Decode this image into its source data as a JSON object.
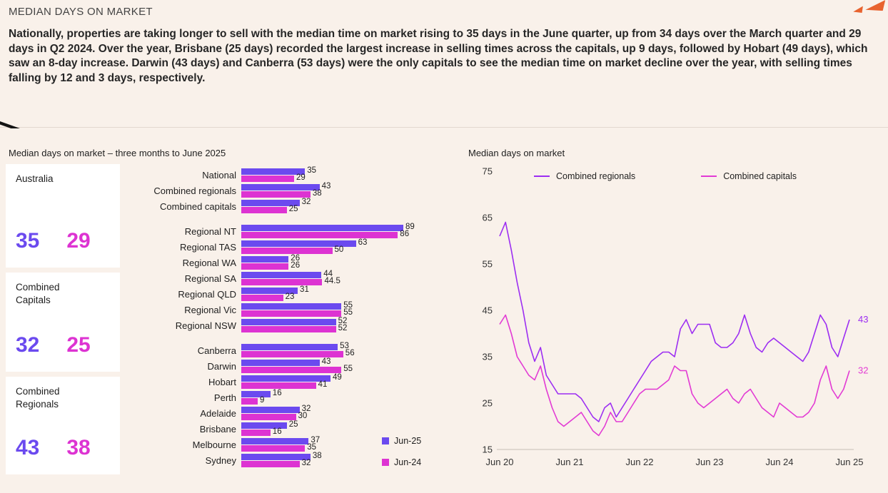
{
  "header": {
    "title": "MEDIAN DAYS ON MARKET",
    "intro": "Nationally, properties are taking longer to sell with the median time on market rising to 35 days in the June quarter, up from 34 days over the March quarter and 29 days in Q2 2024. Over the year, Brisbane (25 days) recorded the largest increase in selling times across the capitals, up 9 days, followed by Hobart (49 days), which saw an 8-day increase. Darwin (43 days) and Canberra (53 days) were the only capitals to see the median time on market decline over the year, with selling times falling by 12 and 3 days, respectively."
  },
  "colors": {
    "jun25_purple": "#6b4aef",
    "jun24_magenta": "#dd33d2",
    "regionals_line": "#9c2df2",
    "capitals_line": "#e23ad4",
    "decor_orange": "#e8632f",
    "axis_gray": "#c8bfb7",
    "background": "#f9f1ea"
  },
  "stat_cards": [
    {
      "label": "Australia",
      "jun25": "35",
      "jun24": "29"
    },
    {
      "label": "Combined\nCapitals",
      "jun25": "32",
      "jun24": "25"
    },
    {
      "label": "Combined\nRegionals",
      "jun25": "43",
      "jun24": "38"
    }
  ],
  "chart_data": [
    {
      "type": "bar",
      "orientation": "horizontal",
      "title": "Median days on market – three months to June 2025",
      "series_names": [
        "Jun-25",
        "Jun-24"
      ],
      "xlim": [
        0,
        95
      ],
      "groups": [
        {
          "rows": [
            {
              "label": "National",
              "values": [
                35,
                29
              ]
            },
            {
              "label": "Combined regionals",
              "values": [
                43,
                38
              ]
            },
            {
              "label": "Combined capitals",
              "values": [
                32,
                25
              ]
            }
          ]
        },
        {
          "rows": [
            {
              "label": "Regional NT",
              "values": [
                89,
                86
              ]
            },
            {
              "label": "Regional TAS",
              "values": [
                63,
                50
              ]
            },
            {
              "label": "Regional WA",
              "values": [
                26,
                26
              ]
            },
            {
              "label": "Regional SA",
              "values": [
                44,
                44.5
              ]
            },
            {
              "label": "Regional QLD",
              "values": [
                31,
                23
              ]
            },
            {
              "label": "Regional Vic",
              "values": [
                55,
                55
              ]
            },
            {
              "label": "Regional NSW",
              "values": [
                52,
                52
              ]
            }
          ]
        },
        {
          "rows": [
            {
              "label": "Canberra",
              "values": [
                53,
                56
              ]
            },
            {
              "label": "Darwin",
              "values": [
                43,
                55
              ]
            },
            {
              "label": "Hobart",
              "values": [
                49,
                41
              ]
            },
            {
              "label": "Perth",
              "values": [
                16,
                9
              ]
            },
            {
              "label": "Adelaide",
              "values": [
                32,
                30
              ]
            },
            {
              "label": "Brisbane",
              "values": [
                25,
                16
              ]
            },
            {
              "label": "Melbourne",
              "values": [
                37,
                35
              ]
            },
            {
              "label": "Sydney",
              "values": [
                38,
                32
              ]
            }
          ]
        }
      ]
    },
    {
      "type": "line",
      "title": "Median days on market",
      "ylim": [
        15,
        75
      ],
      "yticks": [
        75,
        65,
        55,
        45,
        35,
        25,
        15
      ],
      "xticks": [
        "Jun 20",
        "Jun 21",
        "Jun 22",
        "Jun 23",
        "Jun 24",
        "Jun 25"
      ],
      "grid": false,
      "legend_position": "top",
      "series": [
        {
          "name": "Combined regionals",
          "color_key": "regionals_line",
          "end_label": "43",
          "values": [
            61,
            64,
            58,
            51,
            45,
            38,
            34,
            37,
            31,
            29,
            27,
            27,
            27,
            27,
            26,
            24,
            22,
            21,
            24,
            25,
            22,
            24,
            26,
            28,
            30,
            32,
            34,
            35,
            36,
            36,
            35,
            41,
            43,
            40,
            42,
            42,
            42,
            38,
            37,
            37,
            38,
            40,
            44,
            40,
            37,
            36,
            38,
            39,
            38,
            37,
            36,
            35,
            34,
            36,
            40,
            44,
            42,
            37,
            35,
            39,
            43
          ]
        },
        {
          "name": "Combined capitals",
          "color_key": "capitals_line",
          "end_label": "32",
          "values": [
            42,
            44,
            40,
            35,
            33,
            31,
            30,
            33,
            28,
            24,
            21,
            20,
            21,
            22,
            23,
            21,
            19,
            18,
            20,
            23,
            21,
            21,
            23,
            25,
            27,
            28,
            28,
            28,
            29,
            30,
            33,
            32,
            32,
            27,
            25,
            24,
            25,
            26,
            27,
            28,
            26,
            25,
            27,
            28,
            26,
            24,
            23,
            22,
            25,
            24,
            23,
            22,
            22,
            23,
            25,
            30,
            33,
            28,
            26,
            28,
            32
          ]
        }
      ]
    }
  ]
}
